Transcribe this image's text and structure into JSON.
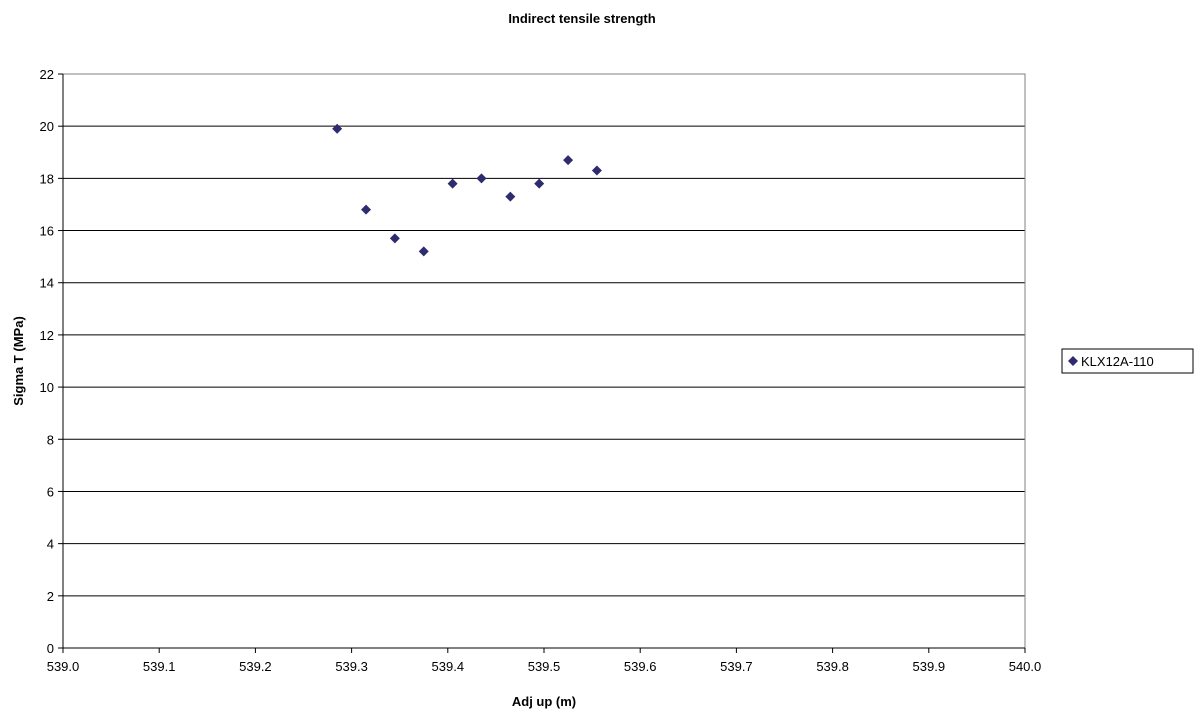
{
  "chart_data": {
    "type": "scatter",
    "title": "Indirect tensile strength",
    "xlabel": "Adj up (m)",
    "ylabel": "Sigma T (MPa)",
    "xlim": [
      539.0,
      540.0
    ],
    "ylim": [
      0,
      22
    ],
    "x_ticks": [
      "539.0",
      "539.1",
      "539.2",
      "539.3",
      "539.4",
      "539.5",
      "539.6",
      "539.7",
      "539.8",
      "539.9",
      "540.0"
    ],
    "y_ticks": [
      "0",
      "2",
      "4",
      "6",
      "8",
      "10",
      "12",
      "14",
      "16",
      "18",
      "20",
      "22"
    ],
    "grid": "horizontal major gridlines",
    "legend_position": "right",
    "series": [
      {
        "name": "KLX12A-110",
        "color": "#2e2b6e",
        "marker": "diamond",
        "x": [
          539.285,
          539.315,
          539.345,
          539.375,
          539.405,
          539.435,
          539.465,
          539.495,
          539.525,
          539.555
        ],
        "y": [
          19.9,
          16.8,
          15.7,
          15.2,
          17.8,
          18.0,
          17.3,
          17.8,
          18.7,
          18.3
        ]
      }
    ]
  }
}
